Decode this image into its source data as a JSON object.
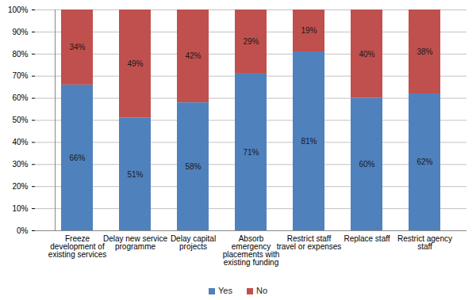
{
  "chart_data": {
    "type": "bar",
    "stacked": true,
    "data_labels": true,
    "grid": true,
    "legend": "bottom",
    "categories": [
      "Freeze development of existing services",
      "Delay new service programme",
      "Delay capital projects",
      "Absorb emergency placements with existing funding",
      "Restrict staff travel or expenses",
      "Replace staff",
      "Restrict agency staff"
    ],
    "series": [
      {
        "name": "Yes",
        "color": "#4f81bd",
        "values": [
          66,
          51,
          58,
          71,
          81,
          60,
          62
        ],
        "value_labels": [
          "66%",
          "51%",
          "58%",
          "71%",
          "81%",
          "60%",
          "62%"
        ]
      },
      {
        "name": "No",
        "color": "#c0504d",
        "values": [
          34,
          49,
          42,
          29,
          19,
          40,
          38
        ],
        "value_labels": [
          "34%",
          "49%",
          "42%",
          "29%",
          "19%",
          "40%",
          "38%"
        ]
      }
    ],
    "ylim": [
      0,
      100
    ],
    "yticks": [
      {
        "value": 0,
        "label": "0%"
      },
      {
        "value": 10,
        "label": "10%"
      },
      {
        "value": 20,
        "label": "20%"
      },
      {
        "value": 30,
        "label": "30%"
      },
      {
        "value": 40,
        "label": "40%"
      },
      {
        "value": 50,
        "label": "50%"
      },
      {
        "value": 60,
        "label": "60%"
      },
      {
        "value": 70,
        "label": "70%"
      },
      {
        "value": 80,
        "label": "80%"
      },
      {
        "value": 90,
        "label": "90%"
      },
      {
        "value": 100,
        "label": "100%"
      }
    ]
  }
}
